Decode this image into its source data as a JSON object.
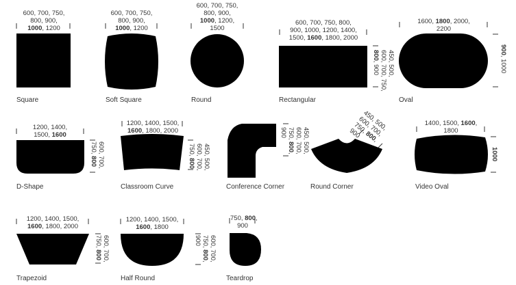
{
  "shapes": [
    {
      "name": "Square",
      "dims": [
        "600, 700, 750,",
        "800, 900,",
        "{b}1000{/b}, 1200"
      ]
    },
    {
      "name": "Soft Square",
      "dims": [
        "600, 700, 750,",
        "800, 900,",
        "{b}1000{/b}, 1200"
      ]
    },
    {
      "name": "Round",
      "dims": [
        "600, 700, 750,",
        "800, 900,",
        "{b}1000{/b}, 1200,",
        "1500"
      ]
    },
    {
      "name": "Rectangular",
      "dims": [
        "600, 700, 750, 800,",
        "900, 1000, 1200, 1400,",
        "1500, {b}1600{/b}, 1800, 2000"
      ],
      "vdims": [
        "450, 500,",
        "600, 700, 750,",
        "{b}800{/b}, 900"
      ]
    },
    {
      "name": "Oval",
      "dims": [
        "1600, {b}1800{/b}, 2000,",
        "2200"
      ],
      "vdims": [
        "{b}900{/b}, 1000"
      ]
    },
    {
      "name": "D-Shape",
      "dims": [
        "1200, 1400,",
        "1500, {b}1600{/b}"
      ],
      "vdims": [
        "600, 700,",
        "750, {b}800{/b}"
      ]
    },
    {
      "name": "Classroom Curve",
      "dims": [
        "1200, 1400, 1500,",
        "{b}1600{/b}, 1800, 2000"
      ],
      "vdims": [
        "450, 500,",
        "600, 700,",
        "750, {b}800{/b}"
      ]
    },
    {
      "name": "Conference Corner",
      "vdims": [
        "450, 500,",
        "600, 700,",
        "750, {b}800{/b},",
        "900"
      ]
    },
    {
      "name": "Round Corner",
      "vdims": [
        "450, 500,",
        "600, 700,",
        "750, {b}800{/b},",
        "900"
      ]
    },
    {
      "name": "Video Oval",
      "dims": [
        "1400, 1500, {b}1600{/b},",
        "1800"
      ],
      "vdims": [
        "{b}1000{/b}"
      ]
    },
    {
      "name": "Trapezoid",
      "dims": [
        "1200, 1400, 1500,",
        "{b}1600{/b}, 1800, 2000"
      ],
      "vdims": [
        "600, 700,",
        "750, {b}800{/b}"
      ]
    },
    {
      "name": "Half Round",
      "dims": [
        "1200, 1400, 1500,",
        "{b}1600{/b}, 1800"
      ],
      "vdims": [
        "600, 700,",
        "750, {b}800{/b},",
        "900"
      ]
    },
    {
      "name": "Teardrop",
      "dims": [
        "750, {b}800{/b},",
        "900"
      ]
    }
  ],
  "colors": {
    "shape_fill": "#000000",
    "text": "#333333"
  }
}
